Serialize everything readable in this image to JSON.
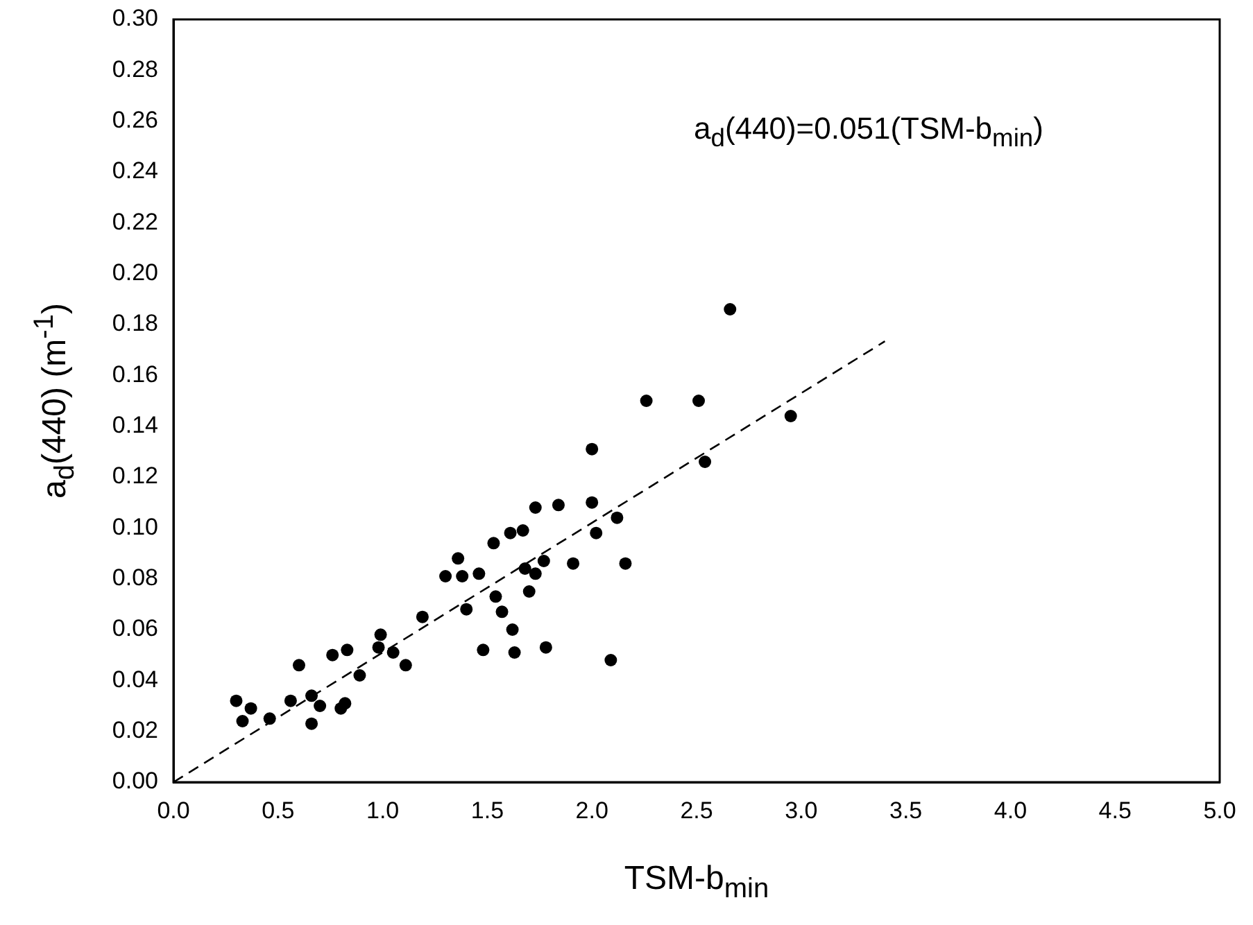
{
  "chart_data": {
    "type": "scatter",
    "xlabel": "TSM-b$_{min}$",
    "ylabel": "a$_{d}$(440) (m$^{-1}$)",
    "annotations": [
      "a$_{d}$(440)=0.051(TSM-b$_{min}$)"
    ],
    "xlim": [
      0,
      5
    ],
    "ylim": [
      0,
      0.3
    ],
    "xticks": [
      {
        "value": 0,
        "label": "0.0"
      },
      0.5,
      {
        "value": 1,
        "label": "1.0"
      },
      1.5,
      {
        "value": 2,
        "label": "2.0"
      },
      2.5,
      {
        "value": 3,
        "label": "3.0"
      },
      3.5,
      {
        "value": 4,
        "label": "4.0"
      },
      4.5,
      {
        "value": 5,
        "label": "5.0"
      }
    ],
    "yticks": [
      {
        "value": 0,
        "label": "0.00"
      },
      0.02,
      0.04,
      0.06,
      0.08,
      {
        "value": 0.1,
        "label": "0.10"
      },
      0.12,
      0.14,
      0.16,
      0.18,
      {
        "value": 0.2,
        "label": "0.20"
      },
      0.22,
      0.24,
      0.26,
      0.28,
      {
        "value": 0.3,
        "label": "0.30"
      }
    ],
    "grid": false,
    "legend": false,
    "series": [
      {
        "color": "#000000",
        "marker": "circle",
        "x": [
          0.3,
          0.33,
          0.37,
          0.46,
          0.56,
          0.6,
          0.66,
          0.66,
          0.7,
          0.76,
          0.8,
          0.82,
          0.83,
          0.89,
          0.98,
          0.99,
          1.05,
          1.11,
          1.19,
          1.3,
          1.36,
          1.38,
          1.4,
          1.46,
          1.48,
          1.53,
          1.54,
          1.57,
          1.61,
          1.62,
          1.63,
          1.67,
          1.68,
          1.7,
          1.73,
          1.73,
          1.77,
          1.78,
          1.84,
          1.91,
          2.0,
          2.0,
          2.02,
          2.09,
          2.12,
          2.16,
          2.26,
          2.51,
          2.54,
          2.66,
          2.95
        ],
        "values": [
          0.032,
          0.024,
          0.029,
          0.025,
          0.032,
          0.046,
          0.034,
          0.023,
          0.03,
          0.05,
          0.029,
          0.031,
          0.052,
          0.042,
          0.053,
          0.058,
          0.051,
          0.046,
          0.065,
          0.081,
          0.088,
          0.081,
          0.068,
          0.082,
          0.052,
          0.094,
          0.073,
          0.067,
          0.098,
          0.06,
          0.051,
          0.099,
          0.084,
          0.075,
          0.108,
          0.082,
          0.087,
          0.053,
          0.109,
          0.086,
          0.131,
          0.11,
          0.098,
          0.048,
          0.104,
          0.086,
          0.15,
          0.15,
          0.126,
          0.186,
          0.144
        ]
      },
      {
        "type": "line",
        "color": "#000000",
        "marker": "none",
        "line_style": "dashed",
        "x": [
          0,
          3.4
        ],
        "values": [
          0,
          0.1734
        ]
      }
    ]
  }
}
